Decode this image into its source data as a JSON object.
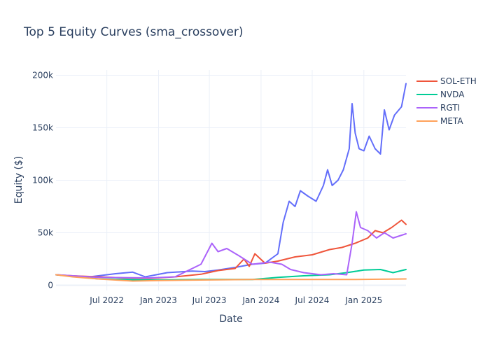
{
  "chart_data": {
    "type": "line",
    "title": "Top 5 Equity Curves (sma_crossover)",
    "xlabel": "Date",
    "ylabel": "Equity ($)",
    "x_range": [
      "2022-01-01",
      "2025-05-31"
    ],
    "x_ticks": [
      {
        "date": "2022-07-01",
        "label": "Jul 2022"
      },
      {
        "date": "2023-01-01",
        "label": "Jan 2023"
      },
      {
        "date": "2023-07-01",
        "label": "Jul 2023"
      },
      {
        "date": "2024-01-01",
        "label": "Jan 2024"
      },
      {
        "date": "2024-07-01",
        "label": "Jul 2024"
      },
      {
        "date": "2025-01-01",
        "label": "Jan 2025"
      }
    ],
    "ylim": [
      -5000,
      205000
    ],
    "y_ticks": [
      {
        "value": 0,
        "label": "0"
      },
      {
        "value": 50000,
        "label": "50k"
      },
      {
        "value": 100000,
        "label": "100k"
      },
      {
        "value": 150000,
        "label": "150k"
      },
      {
        "value": 200000,
        "label": "200k"
      }
    ],
    "grid": true,
    "legend_position": "right",
    "series": [
      {
        "name": "",
        "color": "#636efa",
        "points": [
          [
            "2022-01-01",
            10000
          ],
          [
            "2022-03-01",
            8500
          ],
          [
            "2022-05-01",
            8000
          ],
          [
            "2022-08-01",
            11000
          ],
          [
            "2022-10-01",
            12500
          ],
          [
            "2022-11-15",
            8000
          ],
          [
            "2023-02-01",
            12000
          ],
          [
            "2023-05-01",
            13500
          ],
          [
            "2023-06-15",
            13000
          ],
          [
            "2023-08-01",
            14500
          ],
          [
            "2023-10-01",
            17000
          ],
          [
            "2023-12-01",
            20000
          ],
          [
            "2024-01-15",
            21000
          ],
          [
            "2024-03-01",
            30000
          ],
          [
            "2024-03-20",
            60000
          ],
          [
            "2024-04-10",
            80000
          ],
          [
            "2024-05-01",
            75000
          ],
          [
            "2024-05-20",
            90000
          ],
          [
            "2024-06-15",
            85000
          ],
          [
            "2024-07-15",
            80000
          ],
          [
            "2024-08-10",
            95000
          ],
          [
            "2024-08-25",
            110000
          ],
          [
            "2024-09-10",
            95000
          ],
          [
            "2024-10-01",
            100000
          ],
          [
            "2024-10-20",
            110000
          ],
          [
            "2024-11-10",
            130000
          ],
          [
            "2024-11-20",
            173000
          ],
          [
            "2024-12-01",
            145000
          ],
          [
            "2024-12-15",
            130000
          ],
          [
            "2025-01-01",
            128000
          ],
          [
            "2025-01-20",
            142000
          ],
          [
            "2025-02-10",
            130000
          ],
          [
            "2025-03-01",
            125000
          ],
          [
            "2025-03-15",
            167000
          ],
          [
            "2025-04-01",
            148000
          ],
          [
            "2025-04-20",
            162000
          ],
          [
            "2025-05-15",
            170000
          ],
          [
            "2025-05-31",
            192000
          ]
        ]
      },
      {
        "name": "SOL-ETH",
        "color": "#ef553b",
        "points": [
          [
            "2022-01-01",
            10000
          ],
          [
            "2022-03-01",
            9000
          ],
          [
            "2022-06-01",
            8000
          ],
          [
            "2022-09-01",
            7000
          ],
          [
            "2022-12-01",
            6500
          ],
          [
            "2023-03-01",
            8000
          ],
          [
            "2023-06-01",
            10500
          ],
          [
            "2023-08-01",
            14000
          ],
          [
            "2023-10-01",
            16000
          ],
          [
            "2023-11-01",
            25000
          ],
          [
            "2023-11-20",
            18000
          ],
          [
            "2023-12-10",
            30000
          ],
          [
            "2024-01-15",
            21000
          ],
          [
            "2024-03-01",
            23000
          ],
          [
            "2024-05-01",
            27000
          ],
          [
            "2024-07-01",
            29000
          ],
          [
            "2024-09-01",
            34000
          ],
          [
            "2024-10-15",
            36000
          ],
          [
            "2024-12-01",
            40000
          ],
          [
            "2025-01-15",
            45000
          ],
          [
            "2025-02-10",
            52000
          ],
          [
            "2025-03-10",
            50000
          ],
          [
            "2025-04-10",
            55000
          ],
          [
            "2025-05-15",
            62000
          ],
          [
            "2025-05-31",
            58000
          ]
        ]
      },
      {
        "name": "NVDA",
        "color": "#00cc96",
        "points": [
          [
            "2022-01-01",
            10000
          ],
          [
            "2022-06-01",
            6000
          ],
          [
            "2022-12-01",
            5000
          ],
          [
            "2023-06-01",
            5500
          ],
          [
            "2023-12-01",
            5500
          ],
          [
            "2024-03-01",
            7500
          ],
          [
            "2024-06-01",
            9000
          ],
          [
            "2024-09-01",
            10000
          ],
          [
            "2024-11-01",
            12000
          ],
          [
            "2025-01-01",
            14500
          ],
          [
            "2025-03-01",
            15000
          ],
          [
            "2025-04-15",
            12000
          ],
          [
            "2025-05-31",
            15000
          ]
        ]
      },
      {
        "name": "RGTI",
        "color": "#ab63fa",
        "points": [
          [
            "2022-01-01",
            10000
          ],
          [
            "2022-06-01",
            7500
          ],
          [
            "2022-12-01",
            7000
          ],
          [
            "2023-03-01",
            8000
          ],
          [
            "2023-06-01",
            20000
          ],
          [
            "2023-07-10",
            40000
          ],
          [
            "2023-08-01",
            32000
          ],
          [
            "2023-09-01",
            35000
          ],
          [
            "2023-10-15",
            28000
          ],
          [
            "2023-12-01",
            20000
          ],
          [
            "2024-02-01",
            22000
          ],
          [
            "2024-03-15",
            20000
          ],
          [
            "2024-04-15",
            15000
          ],
          [
            "2024-06-01",
            12000
          ],
          [
            "2024-08-01",
            10000
          ],
          [
            "2024-09-15",
            11000
          ],
          [
            "2024-11-01",
            10000
          ],
          [
            "2024-11-20",
            40000
          ],
          [
            "2024-12-05",
            70000
          ],
          [
            "2024-12-20",
            55000
          ],
          [
            "2025-01-15",
            52000
          ],
          [
            "2025-02-15",
            45000
          ],
          [
            "2025-03-15",
            50000
          ],
          [
            "2025-04-15",
            45000
          ],
          [
            "2025-05-31",
            49000
          ]
        ]
      },
      {
        "name": "META",
        "color": "#ffa15a",
        "points": [
          [
            "2022-01-01",
            10000
          ],
          [
            "2022-03-01",
            8000
          ],
          [
            "2022-06-01",
            6000
          ],
          [
            "2022-10-01",
            4000
          ],
          [
            "2023-01-01",
            4500
          ],
          [
            "2023-06-01",
            5000
          ],
          [
            "2023-12-01",
            5500
          ],
          [
            "2024-06-01",
            5500
          ],
          [
            "2024-12-01",
            5500
          ],
          [
            "2025-05-31",
            6000
          ]
        ]
      }
    ]
  }
}
